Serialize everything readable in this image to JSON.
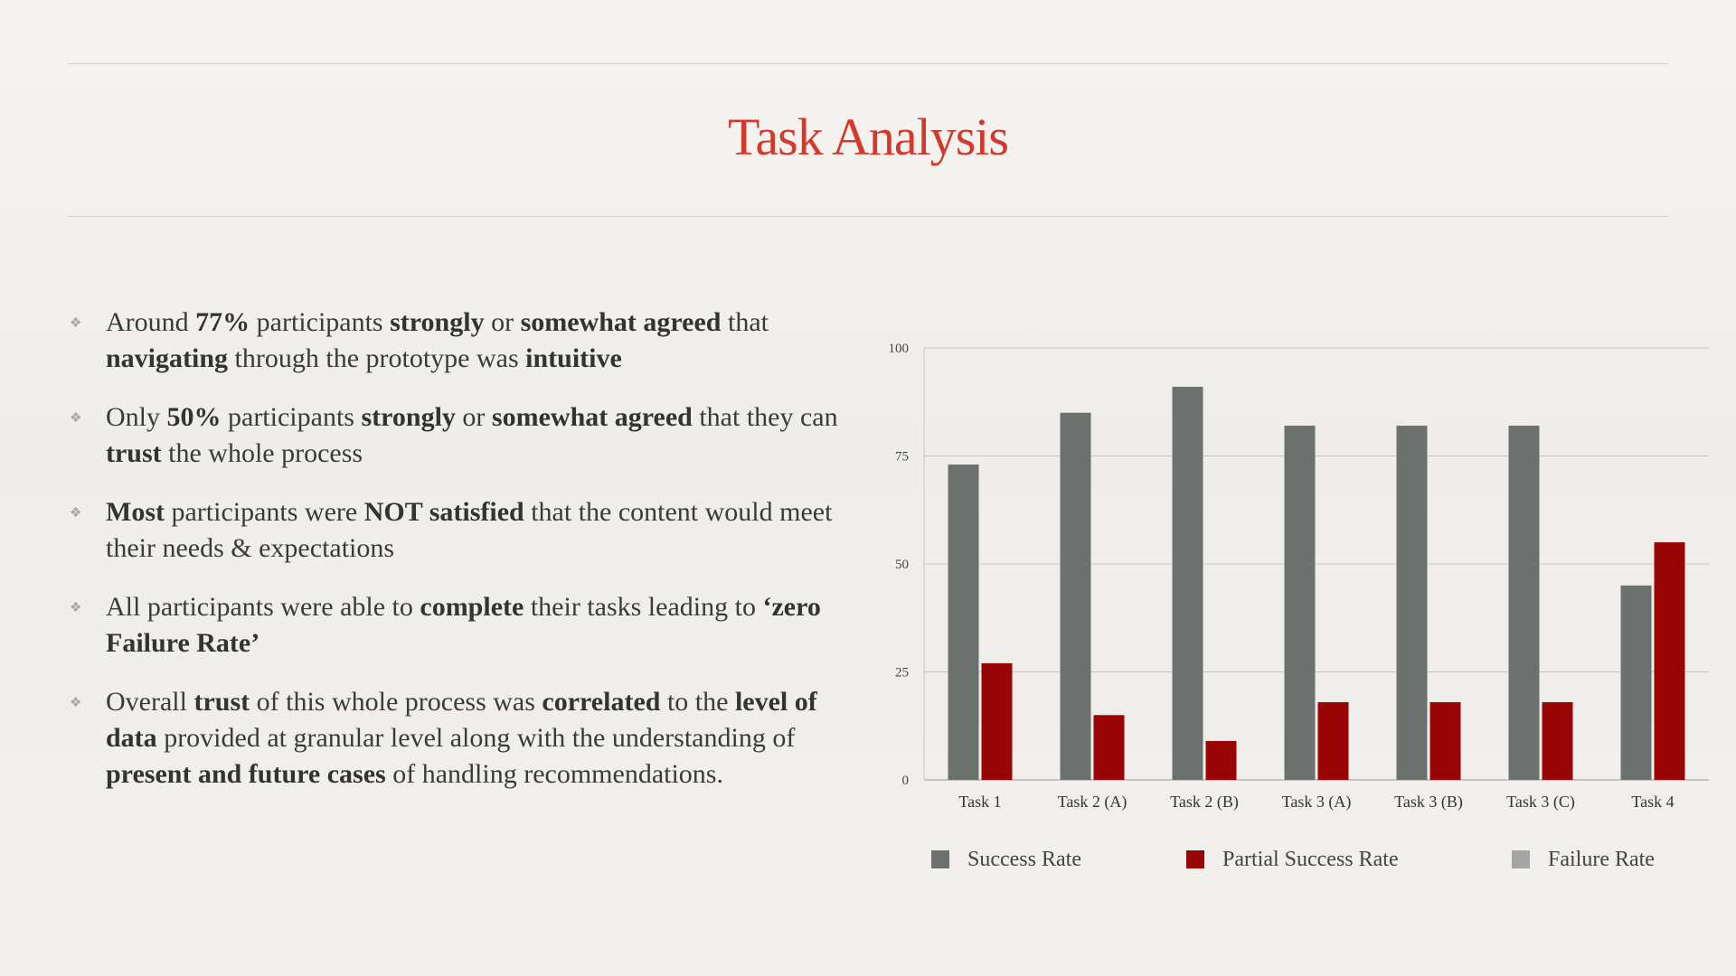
{
  "slide": {
    "title": "Task Analysis"
  },
  "bullets": [
    {
      "segments": [
        {
          "t": "Around "
        },
        {
          "t": "77%",
          "b": true
        },
        {
          "t": " participants "
        },
        {
          "t": "strongly",
          "b": true
        },
        {
          "t": " or "
        },
        {
          "t": "somewhat agreed",
          "b": true
        },
        {
          "t": " that "
        },
        {
          "t": "navigating",
          "b": true
        },
        {
          "t": " through the prototype was "
        },
        {
          "t": "intuitive",
          "b": true
        }
      ]
    },
    {
      "segments": [
        {
          "t": "Only "
        },
        {
          "t": "50%",
          "b": true
        },
        {
          "t": " participants "
        },
        {
          "t": "strongly",
          "b": true
        },
        {
          "t": " or "
        },
        {
          "t": "somewhat agreed",
          "b": true
        },
        {
          "t": " that they can "
        },
        {
          "t": "trust",
          "b": true
        },
        {
          "t": " the whole process"
        }
      ]
    },
    {
      "segments": [
        {
          "t": "Most",
          "b": true
        },
        {
          "t": " participants were "
        },
        {
          "t": "NOT satisfied",
          "b": true
        },
        {
          "t": " that the content would meet their needs & expectations"
        }
      ]
    },
    {
      "segments": [
        {
          "t": "All participants were able to "
        },
        {
          "t": "complete",
          "b": true
        },
        {
          "t": " their tasks leading to "
        },
        {
          "t": "‘zero Failure Rate’",
          "b": true
        }
      ]
    },
    {
      "segments": [
        {
          "t": "Overall "
        },
        {
          "t": "trust",
          "b": true
        },
        {
          "t": " of this whole process was "
        },
        {
          "t": "correlated",
          "b": true
        },
        {
          "t": " to the "
        },
        {
          "t": "level of data",
          "b": true
        },
        {
          "t": " provided at granular level along with the understanding of "
        },
        {
          "t": "present and future cases",
          "b": true
        },
        {
          "t": " of handling recommendations."
        }
      ]
    }
  ],
  "chart_data": {
    "type": "bar",
    "categories": [
      "Task 1",
      "Task 2 (A)",
      "Task 2 (B)",
      "Task 3 (A)",
      "Task 3 (B)",
      "Task 3 (C)",
      "Task 4"
    ],
    "series": [
      {
        "name": "Success Rate",
        "color": "#6c7170",
        "values": [
          73,
          85,
          91,
          82,
          82,
          82,
          45
        ]
      },
      {
        "name": "Partial Success Rate",
        "color": "#990404",
        "values": [
          27,
          15,
          9,
          18,
          18,
          18,
          55
        ]
      },
      {
        "name": "Failure Rate",
        "color": "#a5a5a5",
        "values": [
          0,
          0,
          0,
          0,
          0,
          0,
          0
        ]
      }
    ],
    "ylim": [
      0,
      100
    ],
    "yticks": [
      "0",
      "25",
      "50",
      "75",
      "100"
    ],
    "grid": true,
    "legend": "bottom"
  }
}
